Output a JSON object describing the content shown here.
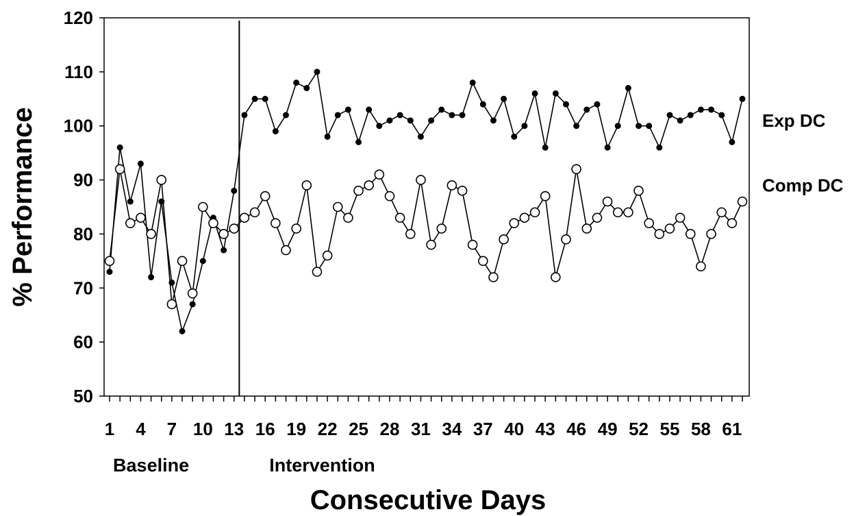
{
  "chart_data": {
    "type": "line",
    "xlabel": "Consecutive Days",
    "ylabel": "% Performance",
    "ylim": [
      50,
      120
    ],
    "yticks": [
      50,
      60,
      70,
      80,
      90,
      100,
      110,
      120
    ],
    "xlim": [
      1,
      62
    ],
    "xticks": [
      1,
      4,
      7,
      10,
      13,
      16,
      19,
      22,
      25,
      28,
      31,
      34,
      37,
      40,
      43,
      46,
      49,
      52,
      55,
      58,
      61
    ],
    "grid": false,
    "phase_change_x": 13.5,
    "phases": [
      {
        "label": "Baseline",
        "x": 5
      },
      {
        "label": "Intervention",
        "x": 21.5
      }
    ],
    "x": [
      1,
      2,
      3,
      4,
      5,
      6,
      7,
      8,
      9,
      10,
      11,
      12,
      13,
      14,
      15,
      16,
      17,
      18,
      19,
      20,
      21,
      22,
      23,
      24,
      25,
      26,
      27,
      28,
      29,
      30,
      31,
      32,
      33,
      34,
      35,
      36,
      37,
      38,
      39,
      40,
      41,
      42,
      43,
      44,
      45,
      46,
      47,
      48,
      49,
      50,
      51,
      52,
      53,
      54,
      55,
      56,
      57,
      58,
      59,
      60,
      61,
      62
    ],
    "series": [
      {
        "name": "Exp DC",
        "marker": "filled",
        "color": "#000000",
        "values": [
          73,
          96,
          86,
          93,
          72,
          86,
          71,
          62,
          67,
          75,
          83,
          77,
          88,
          102,
          105,
          105,
          99,
          102,
          108,
          107,
          110,
          98,
          102,
          103,
          97,
          103,
          100,
          101,
          102,
          101,
          98,
          101,
          103,
          102,
          102,
          108,
          104,
          101,
          105,
          98,
          100,
          106,
          96,
          106,
          104,
          100,
          103,
          104,
          96,
          100,
          107,
          100,
          100,
          96,
          102,
          101,
          102,
          103,
          103,
          102,
          97,
          105
        ]
      },
      {
        "name": "Comp DC",
        "marker": "open",
        "color": "#000000",
        "values": [
          75,
          92,
          82,
          83,
          80,
          90,
          67,
          75,
          69,
          85,
          82,
          80,
          81,
          83,
          84,
          87,
          82,
          77,
          81,
          89,
          73,
          76,
          85,
          83,
          88,
          89,
          91,
          87,
          83,
          80,
          90,
          78,
          81,
          89,
          88,
          78,
          75,
          72,
          79,
          82,
          83,
          84,
          87,
          72,
          79,
          92,
          81,
          83,
          86,
          84,
          84,
          88,
          82,
          80,
          81,
          83,
          80,
          74,
          80,
          84,
          82,
          86
        ]
      }
    ]
  }
}
